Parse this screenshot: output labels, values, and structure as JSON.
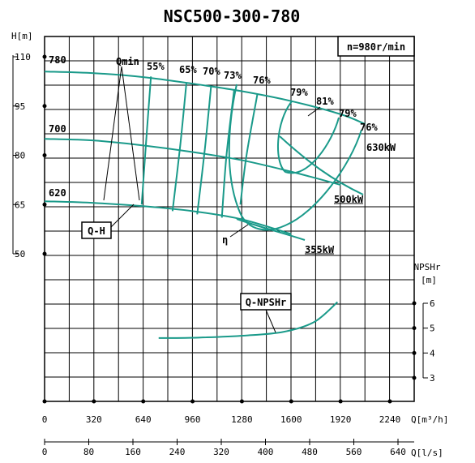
{
  "chart_data": {
    "type": "line",
    "title": "NSC500-300-780",
    "speed_label": "n=980r/min",
    "left_axis": {
      "label": "H[m]",
      "ticks": [
        "110",
        "95",
        "80",
        "65",
        "50"
      ],
      "range": [
        50,
        110
      ]
    },
    "right_axis": {
      "label": "NPSHr",
      "unit": "[m]",
      "ticks": [
        "6",
        "5",
        "4",
        "3"
      ],
      "range": [
        3,
        6
      ]
    },
    "x_axis_flow_m3h": {
      "label": "Q[m³/h]",
      "ticks": [
        "0",
        "320",
        "640",
        "960",
        "1280",
        "1600",
        "1920",
        "2240"
      ],
      "range": [
        0,
        2560
      ]
    },
    "x_axis_flow_ls": {
      "label": "Q[l/s]",
      "ticks": [
        "0",
        "80",
        "160",
        "240",
        "320",
        "400",
        "480",
        "560",
        "640"
      ],
      "range": [
        0,
        711
      ]
    },
    "impeller_labels": [
      "780",
      "700",
      "620"
    ],
    "qh_series": [
      {
        "diameter": "780",
        "x": [
          0,
          320,
          640,
          960,
          1280,
          1600,
          1920,
          2080
        ],
        "y": [
          105.5,
          105,
          103.8,
          101.8,
          99.5,
          96.5,
          92.5,
          89.5
        ]
      },
      {
        "diameter": "700",
        "x": [
          0,
          320,
          640,
          960,
          1280,
          1600,
          1920
        ],
        "y": [
          85,
          84.5,
          83,
          81,
          78.5,
          75,
          71
        ]
      },
      {
        "diameter": "620",
        "x": [
          0,
          320,
          640,
          960,
          1280,
          1600
        ],
        "y": [
          66,
          65.5,
          64.5,
          63,
          60.5,
          56
        ]
      }
    ],
    "efficiency_labels": [
      "55%",
      "65%",
      "70%",
      "73%",
      "76%",
      "79%",
      "81%",
      "79%",
      "76%"
    ],
    "efficiency_curves": [
      {
        "label": "55%",
        "x": [
          690,
          660,
          630
        ],
        "y": [
          104,
          85,
          65
        ]
      },
      {
        "label": "65%",
        "x": [
          920,
          880,
          830
        ],
        "y": [
          102,
          83,
          63
        ]
      },
      {
        "label": "70%",
        "x": [
          1080,
          1040,
          990
        ],
        "y": [
          101,
          82,
          62
        ]
      },
      {
        "label": "73%",
        "x": [
          1230,
          1180,
          1150
        ],
        "y": [
          100,
          80,
          61
        ]
      },
      {
        "label": "76%",
        "x": [
          1380,
          1310,
          1270
        ],
        "y": [
          98.5,
          80,
          65
        ]
      }
    ],
    "power_labels": [
      "630kW",
      "500kW",
      "355kW"
    ],
    "npsh_series": {
      "x": [
        740,
        1000,
        1300,
        1550,
        1750,
        1900
      ],
      "y": [
        4.6,
        4.62,
        4.7,
        4.85,
        5.25,
        6.05
      ]
    },
    "annotations": [
      "Qmin",
      "Q-H",
      "η",
      "Q-NPSHr"
    ]
  }
}
